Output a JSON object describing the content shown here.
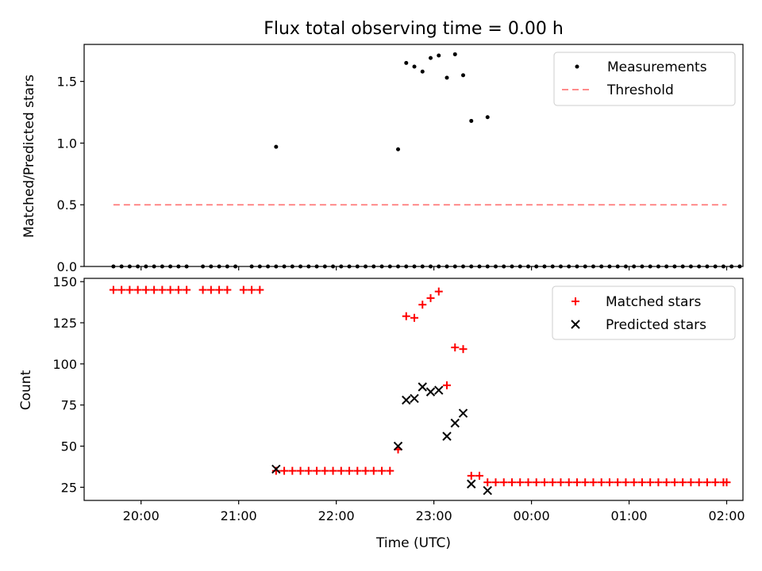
{
  "chart_data": [
    {
      "type": "scatter",
      "title": "Flux total observing time = 0.00 h",
      "xlabel": "",
      "ylabel": "Matched/Predicted stars",
      "ylim": [
        0,
        1.8
      ],
      "yticks": [
        0.0,
        0.5,
        1.0,
        1.5
      ],
      "ytick_labels": [
        "0.0",
        "0.5",
        "1.0",
        "1.5"
      ],
      "legend_position": "top-right",
      "legend": [
        "Measurements",
        "Threshold"
      ],
      "series": [
        {
          "name": "Measurements",
          "color": "#000000",
          "x": [
            "19:43",
            "19:48",
            "19:53",
            "19:58",
            "20:03",
            "20:08",
            "20:13",
            "20:18",
            "20:23",
            "20:28",
            "20:38",
            "20:43",
            "20:48",
            "20:53",
            "20:58",
            "21:08",
            "21:13",
            "21:18",
            "21:23",
            "21:28",
            "21:33",
            "21:38",
            "21:43",
            "21:48",
            "21:53",
            "21:58",
            "22:03",
            "22:08",
            "22:13",
            "22:18",
            "22:23",
            "22:28",
            "22:33",
            "22:38",
            "22:43",
            "22:48",
            "22:53",
            "22:58",
            "23:03",
            "23:08",
            "23:13",
            "23:18",
            "23:23",
            "23:28",
            "23:33",
            "23:38",
            "23:43",
            "23:48",
            "23:53",
            "23:58",
            "00:03",
            "00:08",
            "00:13",
            "00:18",
            "00:23",
            "00:28",
            "00:33",
            "00:38",
            "00:43",
            "00:48",
            "00:53",
            "00:58",
            "01:03",
            "01:08",
            "01:13",
            "01:18",
            "01:23",
            "01:28",
            "01:33",
            "01:38",
            "01:43",
            "01:48",
            "01:53",
            "01:58",
            "02:03",
            "02:08"
          ],
          "y": [
            0,
            0,
            0,
            0,
            0,
            0,
            0,
            0,
            0,
            0,
            0,
            0,
            0,
            0,
            0,
            0,
            0,
            0,
            0,
            0,
            0,
            0,
            0,
            0,
            0,
            0,
            0,
            0,
            0,
            0,
            0,
            0,
            0,
            0,
            0,
            0,
            0,
            0,
            0,
            0,
            0,
            0,
            0,
            0,
            0,
            0,
            0,
            0,
            0,
            0,
            0,
            0,
            0,
            0,
            0,
            0,
            0,
            0,
            0,
            0,
            0,
            0,
            0,
            0,
            0,
            0,
            0,
            0,
            0,
            0,
            0,
            0,
            0,
            0,
            0,
            0
          ]
        },
        {
          "name": "Threshold",
          "color": "#ff7b7b",
          "x": [
            "19:43",
            "02:00"
          ],
          "y": [
            0.5,
            0.5
          ]
        }
      ],
      "extra_points": {
        "x": [
          "21:23",
          "22:38",
          "22:43",
          "22:48",
          "22:53",
          "22:58",
          "23:03",
          "23:08",
          "23:13",
          "23:18",
          "23:23",
          "23:33"
        ],
        "y": [
          0.97,
          0.95,
          1.65,
          1.62,
          1.58,
          1.69,
          1.71,
          1.53,
          1.72,
          1.55,
          1.18,
          1.21
        ]
      }
    },
    {
      "type": "scatter",
      "title": "",
      "xlabel": "Time (UTC)",
      "ylabel": "Count",
      "ylim": [
        17,
        152
      ],
      "yticks": [
        25,
        50,
        75,
        100,
        125,
        150
      ],
      "ytick_labels": [
        "25",
        "50",
        "75",
        "100",
        "125",
        "150"
      ],
      "xtick_labels": [
        "20:00",
        "21:00",
        "22:00",
        "23:00",
        "00:00",
        "01:00",
        "02:00"
      ],
      "legend_position": "top-right",
      "legend": [
        "Matched stars",
        "Predicted stars"
      ],
      "series": [
        {
          "name": "Matched stars",
          "color": "#ff0000",
          "x": [
            "19:43",
            "19:48",
            "19:53",
            "19:58",
            "20:03",
            "20:08",
            "20:13",
            "20:18",
            "20:23",
            "20:28",
            "20:38",
            "20:43",
            "20:48",
            "20:53",
            "21:03",
            "21:08",
            "21:13",
            "21:23",
            "21:28",
            "21:33",
            "21:38",
            "21:43",
            "21:48",
            "21:53",
            "21:58",
            "22:03",
            "22:08",
            "22:13",
            "22:18",
            "22:23",
            "22:28",
            "22:33",
            "22:38",
            "22:43",
            "22:48",
            "22:53",
            "22:58",
            "23:03",
            "23:08",
            "23:13",
            "23:18",
            "23:23",
            "23:28",
            "23:33",
            "23:38",
            "23:43",
            "23:48",
            "23:53",
            "23:58",
            "00:03",
            "00:08",
            "00:13",
            "00:18",
            "00:23",
            "00:28",
            "00:33",
            "00:38",
            "00:43",
            "00:48",
            "00:53",
            "00:58",
            "01:03",
            "01:08",
            "01:13",
            "01:18",
            "01:23",
            "01:28",
            "01:33",
            "01:38",
            "01:43",
            "01:48",
            "01:53",
            "01:58",
            "02:00"
          ],
          "y": [
            145,
            145,
            145,
            145,
            145,
            145,
            145,
            145,
            145,
            145,
            145,
            145,
            145,
            145,
            145,
            145,
            145,
            35,
            35,
            35,
            35,
            35,
            35,
            35,
            35,
            35,
            35,
            35,
            35,
            35,
            35,
            35,
            48,
            129,
            128,
            136,
            140,
            144,
            87,
            110,
            109,
            32,
            32,
            28,
            28,
            28,
            28,
            28,
            28,
            28,
            28,
            28,
            28,
            28,
            28,
            28,
            28,
            28,
            28,
            28,
            28,
            28,
            28,
            28,
            28,
            28,
            28,
            28,
            28,
            28,
            28,
            28,
            28,
            28
          ]
        },
        {
          "name": "Predicted stars",
          "color": "#000000",
          "x": [
            "21:23",
            "22:38",
            "22:43",
            "22:48",
            "22:53",
            "22:58",
            "23:03",
            "23:08",
            "23:13",
            "23:18",
            "23:23",
            "23:33"
          ],
          "y": [
            36,
            50,
            78,
            79,
            86,
            83,
            84,
            56,
            64,
            70,
            27,
            23
          ]
        }
      ]
    }
  ]
}
